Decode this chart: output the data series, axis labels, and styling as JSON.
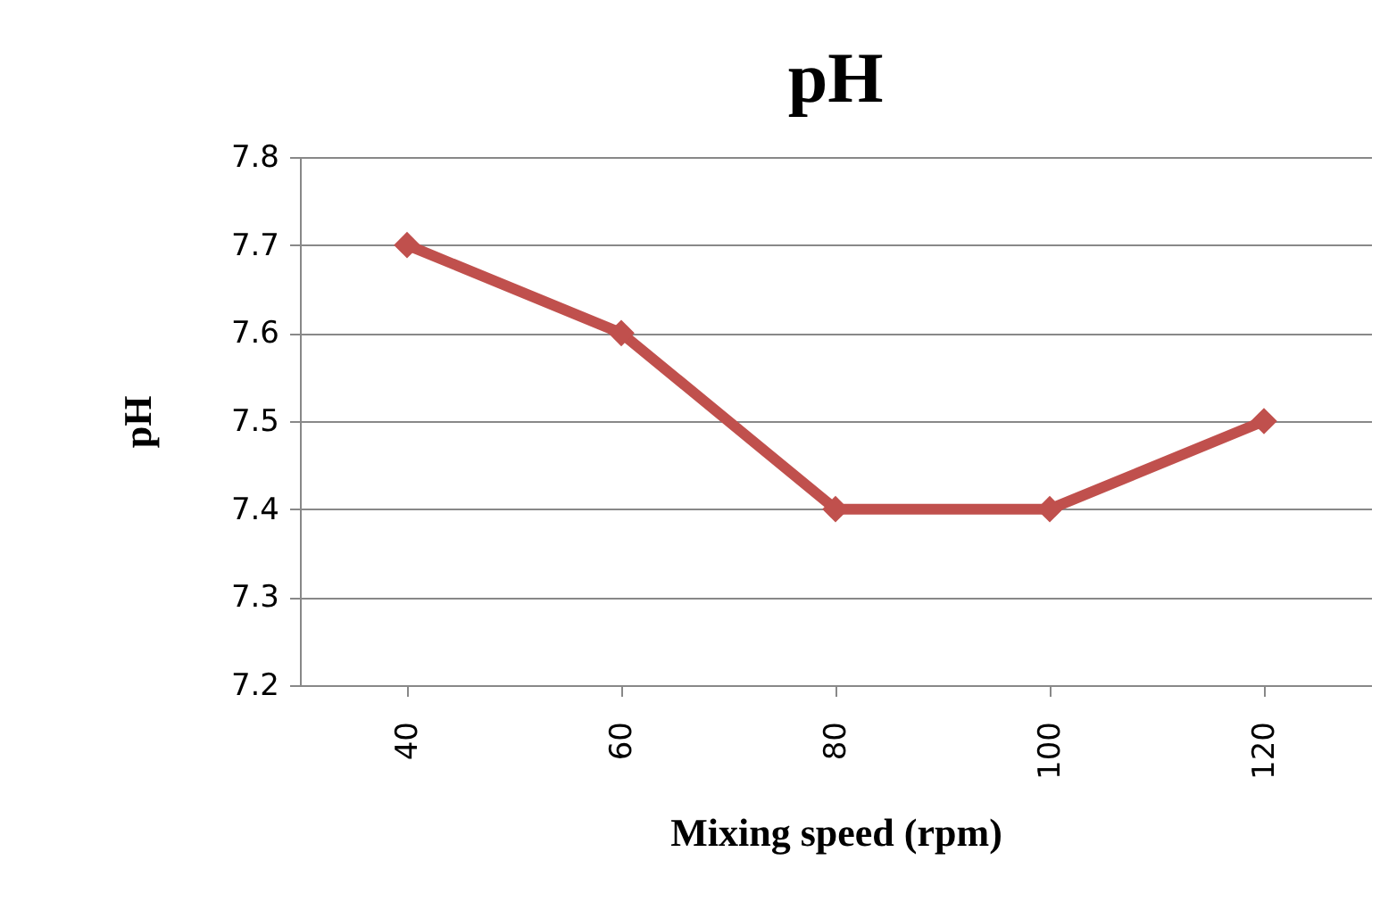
{
  "chart_data": {
    "type": "line",
    "title": "pH",
    "xlabel": "Mixing speed (rpm)",
    "ylabel": "pH",
    "categories": [
      "40",
      "60",
      "80",
      "100",
      "120"
    ],
    "series": [
      {
        "color": "#c0504d",
        "values": [
          7.7,
          7.6,
          7.4,
          7.4,
          7.5
        ]
      }
    ],
    "ylim": [
      7.2,
      7.8
    ],
    "yticks": [
      7.2,
      7.3,
      7.4,
      7.5,
      7.6,
      7.7,
      7.8
    ],
    "grid": "y",
    "legend": false,
    "marker": "diamond",
    "line_style": "solid"
  }
}
